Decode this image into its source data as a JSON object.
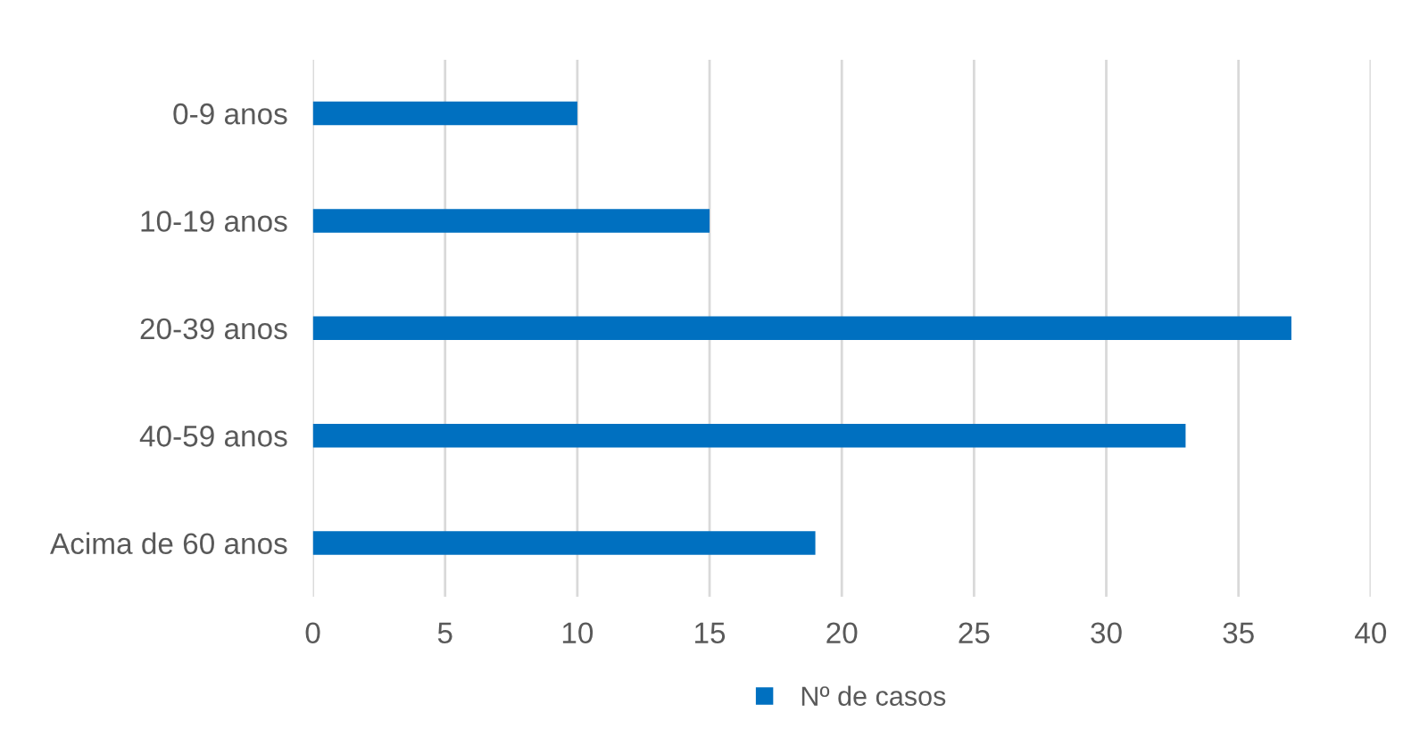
{
  "chart_data": {
    "type": "bar",
    "orientation": "horizontal",
    "categories": [
      "0-9 anos",
      "10-19 anos",
      "20-39 anos",
      "40-59 anos",
      "Acima de 60 anos"
    ],
    "series": [
      {
        "name": "Nº de casos",
        "color": "#0070c0",
        "values": [
          10,
          15,
          37,
          33,
          19
        ]
      }
    ],
    "xlim": [
      0,
      40
    ],
    "xticks": [
      0,
      5,
      10,
      15,
      20,
      25,
      30,
      35,
      40
    ],
    "grid": "x",
    "legend": "bottom"
  }
}
